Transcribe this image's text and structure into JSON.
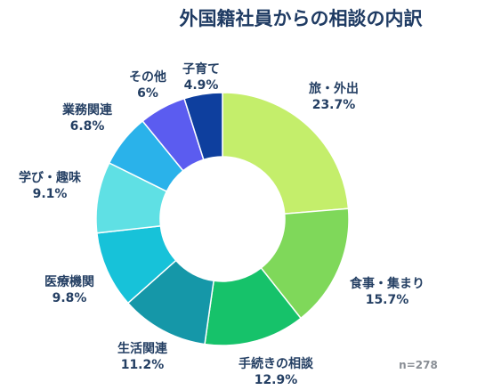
{
  "chart_data": {
    "type": "pie",
    "title": "外国籍社員からの相談の内訳",
    "note": "n=278",
    "slices": [
      {
        "label": "旅・外出",
        "value": 23.7,
        "value_label": "23.7%",
        "color": "#c4ee6b"
      },
      {
        "label": "食事・集まり",
        "value": 15.7,
        "value_label": "15.7%",
        "color": "#7fd85a"
      },
      {
        "label": "手続きの相談",
        "value": 12.9,
        "value_label": "12.9%",
        "color": "#16c26a"
      },
      {
        "label": "生活関連",
        "value": 11.2,
        "value_label": "11.2%",
        "color": "#1597a8"
      },
      {
        "label": "医療機関",
        "value": 9.8,
        "value_label": "9.8%",
        "color": "#17c2d9"
      },
      {
        "label": "学び・趣味",
        "value": 9.1,
        "value_label": "9.1%",
        "color": "#5fe0e4"
      },
      {
        "label": "業務関連",
        "value": 6.8,
        "value_label": "6.8%",
        "color": "#2ab2ea"
      },
      {
        "label": "その他",
        "value": 6.0,
        "value_label": "6%",
        "color": "#5b5cf0"
      },
      {
        "label": "子育て",
        "value": 4.9,
        "value_label": "4.9%",
        "color": "#0e3f9e"
      }
    ]
  }
}
